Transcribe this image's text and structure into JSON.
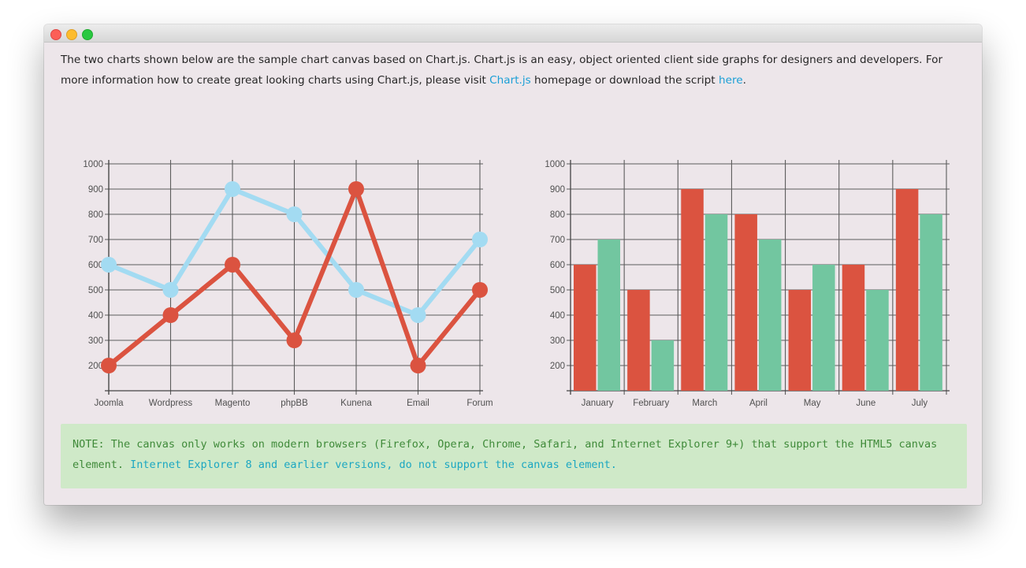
{
  "window": {
    "buttons": [
      "close",
      "minimize",
      "maximize"
    ]
  },
  "intro": {
    "text1": "The two charts shown below are the sample chart canvas based on Chart.js. Chart.js is an easy, object oriented client side graphs for designers and developers. For more information how to create great looking charts using Chart.js, please visit ",
    "link1": "Chart.js",
    "text2": " homepage or download the script ",
    "link2": "here",
    "text3": "."
  },
  "colors": {
    "red": "#db5340",
    "blue": "#a3dbf2",
    "green": "#72c6a0",
    "grid": "#5c5c5c",
    "link": "#1a9fd6"
  },
  "chart_data": [
    {
      "type": "line",
      "categories": [
        "Joomla",
        "Wordpress",
        "Magento",
        "phpBB",
        "Kunena",
        "Email",
        "Forum"
      ],
      "yticks": [
        200,
        300,
        400,
        500,
        600,
        700,
        800,
        900,
        1000
      ],
      "ylim": [
        100,
        1000
      ],
      "grid": true,
      "series": [
        {
          "values": [
            600,
            500,
            900,
            800,
            500,
            400,
            700
          ],
          "color": "#a3dbf2"
        },
        {
          "values": [
            200,
            400,
            600,
            300,
            900,
            200,
            500
          ],
          "color": "#db5340"
        }
      ]
    },
    {
      "type": "bar",
      "categories": [
        "January",
        "February",
        "March",
        "April",
        "May",
        "June",
        "July"
      ],
      "yticks": [
        200,
        300,
        400,
        500,
        600,
        700,
        800,
        900,
        1000
      ],
      "ylim": [
        100,
        1000
      ],
      "grid": true,
      "series": [
        {
          "values": [
            600,
            500,
            900,
            800,
            500,
            600,
            900
          ],
          "color": "#db5340"
        },
        {
          "values": [
            700,
            300,
            800,
            700,
            600,
            500,
            800
          ],
          "color": "#72c6a0"
        }
      ]
    }
  ],
  "note": {
    "text": "NOTE: The canvas only works on modern browsers (Firefox, Opera, Chrome, Safari, and Internet Explorer 9+) that support the HTML5 canvas element. ",
    "link": "Internet Explorer 8 and earlier versions, do not support the canvas element."
  }
}
